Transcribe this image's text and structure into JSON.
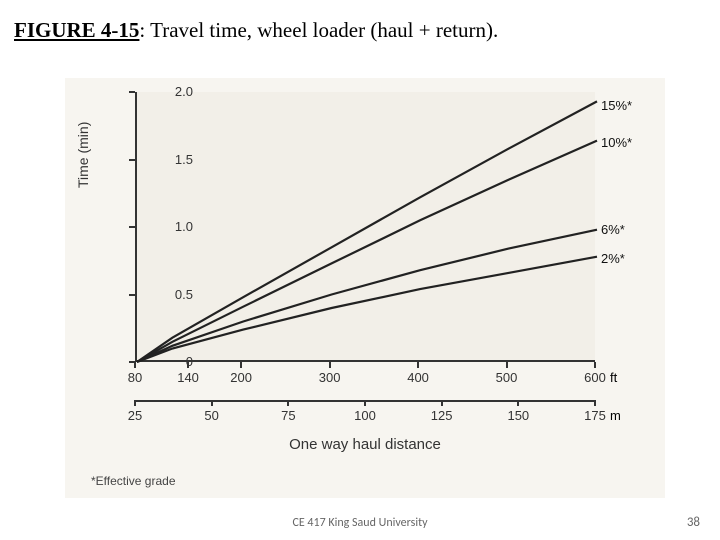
{
  "caption": {
    "label": "FIGURE 4-15",
    "text": ": Travel time, wheel loader (haul + return)."
  },
  "chart": {
    "type": "line",
    "background_color": "#f7f5f0",
    "plot_bg": "#f2efe8",
    "axis_color": "#333333",
    "line_color": "#222222",
    "line_width": 2.2,
    "y": {
      "title": "Time (min)",
      "min": 0,
      "max": 2.0,
      "ticks": [
        0,
        0.5,
        1.0,
        1.5,
        2.0
      ],
      "labels": [
        "0",
        "0.5",
        "1.0",
        "1.5",
        "2.0"
      ],
      "label_fontsize": 13
    },
    "x_ft": {
      "min": 80,
      "max": 600,
      "ticks": [
        80,
        140,
        200,
        300,
        400,
        500,
        600
      ],
      "labels": [
        "80",
        "140",
        "200",
        "300",
        "400",
        "500",
        "600"
      ],
      "unit": "ft"
    },
    "x_m": {
      "min": 25,
      "max": 175,
      "ticks": [
        25,
        50,
        75,
        100,
        125,
        150,
        175
      ],
      "labels": [
        "25",
        "50",
        "75",
        "100",
        "125",
        "150",
        "175"
      ],
      "unit": "m"
    },
    "x_title": "One way haul distance",
    "series": [
      {
        "name": "15%*",
        "points": [
          [
            80,
            0
          ],
          [
            120,
            0.18
          ],
          [
            200,
            0.48
          ],
          [
            300,
            0.85
          ],
          [
            400,
            1.22
          ],
          [
            500,
            1.58
          ],
          [
            600,
            1.93
          ]
        ],
        "label_y": 1.9
      },
      {
        "name": "10%*",
        "points": [
          [
            80,
            0
          ],
          [
            120,
            0.15
          ],
          [
            200,
            0.41
          ],
          [
            300,
            0.73
          ],
          [
            400,
            1.05
          ],
          [
            500,
            1.35
          ],
          [
            600,
            1.64
          ]
        ],
        "label_y": 1.62
      },
      {
        "name": "6%*",
        "points": [
          [
            80,
            0
          ],
          [
            120,
            0.12
          ],
          [
            200,
            0.3
          ],
          [
            300,
            0.5
          ],
          [
            400,
            0.68
          ],
          [
            500,
            0.84
          ],
          [
            600,
            0.98
          ]
        ],
        "label_y": 0.98
      },
      {
        "name": "2%*",
        "points": [
          [
            80,
            0
          ],
          [
            120,
            0.1
          ],
          [
            200,
            0.24
          ],
          [
            300,
            0.4
          ],
          [
            400,
            0.54
          ],
          [
            500,
            0.66
          ],
          [
            600,
            0.78
          ]
        ],
        "label_y": 0.76
      }
    ],
    "footnote": "*Effective grade"
  },
  "footer": {
    "center": "CE 417 King Saud University",
    "page": "38"
  }
}
